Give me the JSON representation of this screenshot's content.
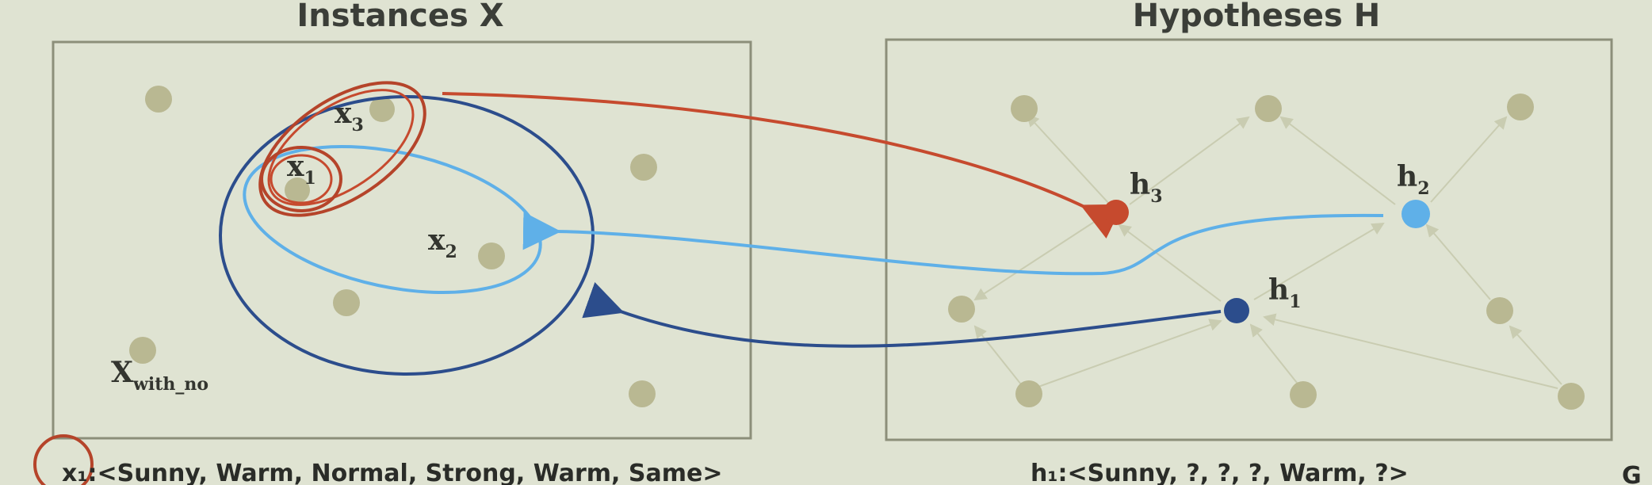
{
  "left_panel": {
    "title": "Instances X",
    "labels": {
      "x1": "x",
      "x1_sub": "1",
      "x2": "x",
      "x2_sub": "2",
      "x3": "x",
      "x3_sub": "3",
      "xwith": "X",
      "xwith_sub": "with_no"
    }
  },
  "right_panel": {
    "title": "Hypotheses H",
    "labels": {
      "h1": "h",
      "h1_sub": "1",
      "h2": "h",
      "h2_sub": "2",
      "h3": "h",
      "h3_sub": "3"
    }
  },
  "captions": {
    "left": "x₁:<Sunny, Warm, Normal, Strong, Warm, Same>",
    "right": "h₁:<Sunny, ?, ?, ?, Warm, ?>",
    "corner_right": "G"
  },
  "colors": {
    "background": "#dfe3d2",
    "panel_border": "#8c8f7a",
    "dot": "#b9b892",
    "h3_red": "#c64a2e",
    "h2_light_blue": "#5fb0e8",
    "h1_dark_blue": "#2c4d8c"
  }
}
